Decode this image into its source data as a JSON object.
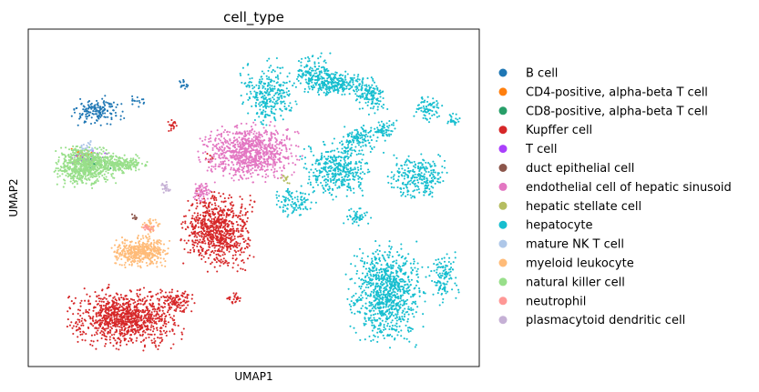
{
  "chart_data": {
    "type": "scatter",
    "title": "cell_type",
    "xlabel": "UMAP1",
    "ylabel": "UMAP2",
    "xlim": [
      0,
      100
    ],
    "ylim": [
      0,
      100
    ],
    "grid": false,
    "ticks": false,
    "legend_placement": "right",
    "series": [
      {
        "name": "B cell",
        "color": "#1f77b4",
        "clusters": [
          [
            15.5,
            75.5,
            4.5,
            3.5,
            160
          ],
          [
            34.5,
            83.5,
            1.2,
            1.2,
            18
          ],
          [
            24.5,
            78.5,
            1.5,
            1.5,
            15
          ]
        ]
      },
      {
        "name": "CD4-positive, alpha-beta T cell",
        "color": "#ff7f0e",
        "clusters": [
          [
            12.0,
            62.0,
            2.5,
            2.0,
            30
          ]
        ]
      },
      {
        "name": "CD8-positive, alpha-beta T cell",
        "color": "#279e68",
        "clusters": [
          [
            15.0,
            60.0,
            3.0,
            2.0,
            30
          ]
        ]
      },
      {
        "name": "Kupffer cell",
        "color": "#d62728",
        "clusters": [
          [
            42.0,
            40.5,
            6.0,
            9.0,
            800
          ],
          [
            21.5,
            14.5,
            9.5,
            7.0,
            1000
          ],
          [
            33.0,
            19.5,
            3.5,
            3.0,
            100
          ],
          [
            45.5,
            20.0,
            2.0,
            1.5,
            25
          ],
          [
            32.0,
            71.0,
            0.9,
            1.8,
            18
          ],
          [
            40.5,
            61.5,
            0.8,
            1.2,
            8
          ]
        ]
      },
      {
        "name": "T cell",
        "color": "#aa40fc",
        "clusters": [
          [
            13.0,
            62.0,
            3.5,
            2.0,
            35
          ]
        ]
      },
      {
        "name": "duct epithelial cell",
        "color": "#8c564b",
        "clusters": [
          [
            23.5,
            44.0,
            1.0,
            1.0,
            8
          ]
        ]
      },
      {
        "name": "endothelial cell of hepatic sinusoid",
        "color": "#e377c2",
        "clusters": [
          [
            49.0,
            63.5,
            8.5,
            6.5,
            900
          ],
          [
            38.5,
            51.5,
            1.5,
            3.0,
            60
          ]
        ]
      },
      {
        "name": "hepatic stellate cell",
        "color": "#b5bd61",
        "clusters": [
          [
            57.0,
            55.5,
            0.8,
            1.2,
            14
          ]
        ]
      },
      {
        "name": "hepatocyte",
        "color": "#17becf",
        "clusters": [
          [
            53.5,
            81.0,
            5.0,
            7.5,
            300
          ],
          [
            63.0,
            87.5,
            3.0,
            4.0,
            100
          ],
          [
            68.0,
            84.0,
            6.5,
            3.0,
            300
          ],
          [
            76.0,
            80.0,
            3.0,
            4.0,
            120
          ],
          [
            88.5,
            76.5,
            2.5,
            3.0,
            80
          ],
          [
            94.5,
            73.0,
            1.5,
            1.5,
            25
          ],
          [
            73.0,
            67.5,
            3.5,
            3.5,
            120
          ],
          [
            68.5,
            58.5,
            6.0,
            6.5,
            400
          ],
          [
            86.0,
            56.0,
            5.5,
            5.5,
            250
          ],
          [
            59.0,
            49.0,
            4.0,
            3.5,
            100
          ],
          [
            73.0,
            44.0,
            2.5,
            2.5,
            50
          ],
          [
            79.5,
            22.0,
            6.5,
            12.0,
            900
          ],
          [
            92.0,
            26.5,
            2.5,
            6.0,
            120
          ],
          [
            78.5,
            70.0,
            2.5,
            2.5,
            60
          ]
        ]
      },
      {
        "name": "mature NK T cell",
        "color": "#aec7e8",
        "clusters": [
          [
            13.0,
            65.0,
            2.0,
            1.5,
            25
          ]
        ]
      },
      {
        "name": "myeloid leukocyte",
        "color": "#ffbb78",
        "clusters": [
          [
            24.5,
            34.0,
            5.0,
            3.5,
            420
          ],
          [
            27.0,
            42.0,
            2.0,
            2.0,
            40
          ]
        ]
      },
      {
        "name": "natural killer cell",
        "color": "#98df8a",
        "clusters": [
          [
            12.5,
            59.5,
            5.0,
            4.5,
            700
          ],
          [
            20.5,
            60.0,
            4.5,
            2.0,
            220
          ]
        ]
      },
      {
        "name": "neutrophil",
        "color": "#ff9896",
        "clusters": [
          [
            26.5,
            41.0,
            1.3,
            1.0,
            18
          ]
        ]
      },
      {
        "name": "plasmacytoid dendritic cell",
        "color": "#c5b0d5",
        "clusters": [
          [
            30.5,
            53.0,
            1.0,
            1.2,
            20
          ]
        ]
      }
    ]
  }
}
